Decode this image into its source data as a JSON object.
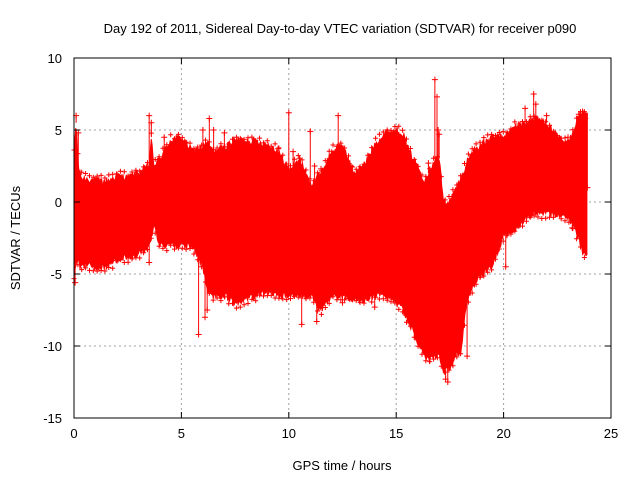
{
  "chart_data": {
    "type": "scatter",
    "title": "Day 192 of 2011, Sidereal Day-to-day VTEC variation (SDTVAR) for receiver p090",
    "xlabel": "GPS time / hours",
    "ylabel": "SDTVAR / TECUs",
    "xlim": [
      0,
      25
    ],
    "ylim": [
      -15,
      10
    ],
    "xticks": [
      0,
      5,
      10,
      15,
      20,
      25
    ],
    "yticks": [
      -15,
      -10,
      -5,
      0,
      5,
      10
    ],
    "x_tick_labels": [
      "0",
      "5",
      "10",
      "15",
      "20",
      "25"
    ],
    "y_tick_labels": [
      "-15",
      "-10",
      "-5",
      "0",
      "5",
      "10"
    ],
    "grid": true,
    "marker": "+",
    "color": "#ff0000",
    "series": [
      {
        "name": "SDTVAR",
        "envelope": {
          "x": [
            0.0,
            0.1,
            0.2,
            0.3,
            0.4,
            0.6,
            1.0,
            1.5,
            2.0,
            2.5,
            3.0,
            3.5,
            3.6,
            3.7,
            4.0,
            4.5,
            5.0,
            5.5,
            6.0,
            6.2,
            6.5,
            7.0,
            7.5,
            8.0,
            8.5,
            9.0,
            9.5,
            10.0,
            10.5,
            11.0,
            11.5,
            12.0,
            12.5,
            13.0,
            13.5,
            14.0,
            14.5,
            15.0,
            15.3,
            15.6,
            16.0,
            16.3,
            16.5,
            16.8,
            17.0,
            17.2,
            17.5,
            17.8,
            18.0,
            18.3,
            18.6,
            19.0,
            19.5,
            20.0,
            20.5,
            21.0,
            21.5,
            22.0,
            22.5,
            23.0,
            23.5,
            23.7,
            23.9
          ],
          "upper": [
            3.5,
            5.5,
            2.5,
            1.8,
            1.6,
            1.6,
            1.5,
            1.4,
            1.8,
            1.7,
            2.0,
            2.5,
            4.5,
            2.5,
            3.0,
            4.3,
            4.5,
            3.5,
            3.8,
            4.1,
            3.5,
            3.8,
            4.3,
            4.3,
            4.2,
            4.0,
            3.5,
            2.2,
            3.0,
            1.2,
            2.0,
            3.5,
            4.0,
            2.0,
            2.5,
            4.0,
            4.8,
            5.0,
            4.8,
            3.5,
            2.5,
            1.5,
            2.0,
            3.0,
            3.0,
            0.0,
            0.0,
            1.0,
            1.5,
            2.8,
            3.6,
            4.0,
            4.5,
            4.5,
            5.2,
            5.5,
            5.8,
            5.5,
            4.5,
            4.0,
            6.0,
            6.2,
            6.2
          ],
          "lower": [
            -5.0,
            -4.3,
            -4.0,
            -4.5,
            -4.4,
            -4.4,
            -4.5,
            -4.5,
            -4.0,
            -3.8,
            -3.6,
            -3.0,
            -2.5,
            -1.5,
            -3.0,
            -3.0,
            -3.0,
            -3.0,
            -4.5,
            -6.0,
            -6.5,
            -6.5,
            -7.0,
            -6.8,
            -6.5,
            -6.3,
            -6.5,
            -6.5,
            -6.5,
            -6.5,
            -7.5,
            -6.5,
            -6.5,
            -6.8,
            -6.8,
            -6.5,
            -6.5,
            -7.0,
            -7.5,
            -8.3,
            -9.8,
            -10.8,
            -11.0,
            -10.8,
            -10.5,
            -11.8,
            -11.5,
            -10.5,
            -10.5,
            -6.8,
            -5.8,
            -5.0,
            -4.3,
            -2.3,
            -2.0,
            -1.2,
            -0.7,
            -0.8,
            -0.8,
            -1.0,
            -2.5,
            -3.5,
            -3.8
          ]
        },
        "outliers": [
          {
            "x": 0.1,
            "y": 6.0
          },
          {
            "x": 0.2,
            "y": 4.8
          },
          {
            "x": 0.05,
            "y": -5.6
          },
          {
            "x": 3.5,
            "y": 6.0
          },
          {
            "x": 3.6,
            "y": 5.5
          },
          {
            "x": 3.5,
            "y": -4.2
          },
          {
            "x": 4.2,
            "y": 4.5
          },
          {
            "x": 5.8,
            "y": -9.2
          },
          {
            "x": 6.0,
            "y": 5.0
          },
          {
            "x": 6.1,
            "y": -8.0
          },
          {
            "x": 6.2,
            "y": -7.5
          },
          {
            "x": 6.3,
            "y": 5.8
          },
          {
            "x": 6.5,
            "y": 5.0
          },
          {
            "x": 7.0,
            "y": 4.8
          },
          {
            "x": 9.5,
            "y": 3.7
          },
          {
            "x": 10.0,
            "y": 6.2
          },
          {
            "x": 10.2,
            "y": 3.5
          },
          {
            "x": 10.5,
            "y": 3.0
          },
          {
            "x": 10.6,
            "y": -8.5
          },
          {
            "x": 11.0,
            "y": 4.9
          },
          {
            "x": 11.2,
            "y": 2.5
          },
          {
            "x": 11.3,
            "y": -8.3
          },
          {
            "x": 11.5,
            "y": 2.3
          },
          {
            "x": 12.3,
            "y": 6.0
          },
          {
            "x": 12.5,
            "y": -7.0
          },
          {
            "x": 12.9,
            "y": 2.5
          },
          {
            "x": 14.0,
            "y": -7.3
          },
          {
            "x": 16.5,
            "y": 2.7
          },
          {
            "x": 16.8,
            "y": 8.5
          },
          {
            "x": 16.9,
            "y": 7.3
          },
          {
            "x": 16.95,
            "y": 5.0
          },
          {
            "x": 17.0,
            "y": 4.7
          },
          {
            "x": 17.3,
            "y": -12.3
          },
          {
            "x": 17.4,
            "y": -12.5
          },
          {
            "x": 18.3,
            "y": -10.7
          },
          {
            "x": 19.0,
            "y": 3.6
          },
          {
            "x": 20.0,
            "y": 4.0
          },
          {
            "x": 20.1,
            "y": -4.5
          },
          {
            "x": 20.5,
            "y": 4.6
          },
          {
            "x": 21.0,
            "y": 6.5
          },
          {
            "x": 21.4,
            "y": 7.5
          },
          {
            "x": 21.5,
            "y": 6.8
          },
          {
            "x": 22.0,
            "y": 6.0
          },
          {
            "x": 23.0,
            "y": 4.5
          },
          {
            "x": 23.2,
            "y": -1.8
          },
          {
            "x": 23.5,
            "y": 6.1
          },
          {
            "x": 23.8,
            "y": 5.8
          },
          {
            "x": 23.9,
            "y": 1.0
          }
        ]
      }
    ]
  }
}
